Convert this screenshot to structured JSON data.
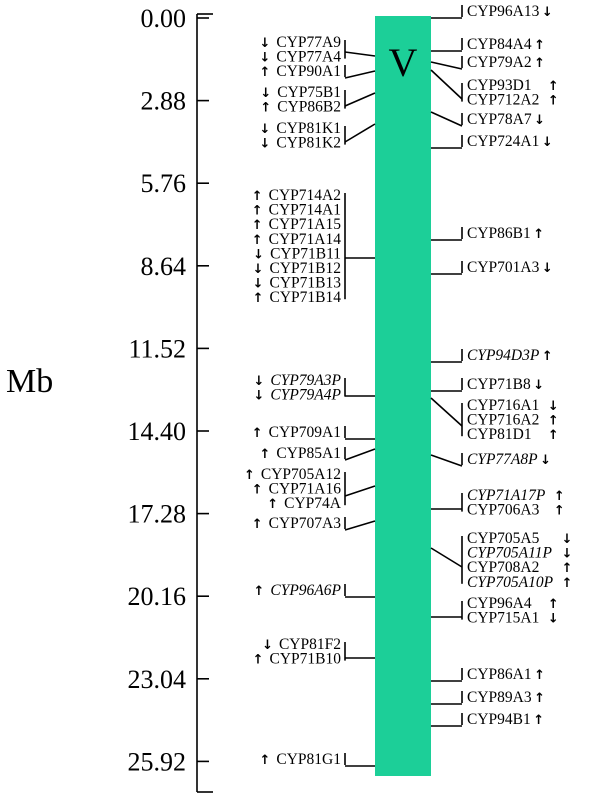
{
  "axis": {
    "title": "Mb",
    "ticks": [
      "0.00",
      "2.88",
      "5.76",
      "8.64",
      "11.52",
      "14.40",
      "17.28",
      "20.16",
      "23.04",
      "25.92"
    ]
  },
  "chromosome": {
    "label": "V",
    "color": "#1ccf98"
  },
  "left_groups": [
    {
      "genes": [
        {
          "name": "CYP77A9",
          "dir": "down"
        },
        {
          "name": "CYP77A4",
          "dir": "down"
        }
      ]
    },
    {
      "genes": [
        {
          "name": "CYP90A1",
          "dir": "up"
        }
      ]
    },
    {
      "genes": [
        {
          "name": "CYP75B1",
          "dir": "down"
        },
        {
          "name": "CYP86B2",
          "dir": "up"
        }
      ]
    },
    {
      "genes": [
        {
          "name": "CYP81K1",
          "dir": "down"
        },
        {
          "name": "CYP81K2",
          "dir": "down"
        }
      ]
    },
    {
      "genes": [
        {
          "name": "CYP714A2",
          "dir": "up"
        },
        {
          "name": "CYP714A1",
          "dir": "up"
        },
        {
          "name": "CYP71A15",
          "dir": "up"
        },
        {
          "name": "CYP71A14",
          "dir": "up"
        },
        {
          "name": "CYP71B11",
          "dir": "down"
        },
        {
          "name": "CYP71B12",
          "dir": "down"
        },
        {
          "name": "CYP71B13",
          "dir": "down"
        },
        {
          "name": "CYP71B14",
          "dir": "up"
        }
      ]
    },
    {
      "genes": [
        {
          "name": "CYP79A3P",
          "dir": "down",
          "pseudo": true
        },
        {
          "name": "CYP79A4P",
          "dir": "down",
          "pseudo": true
        }
      ]
    },
    {
      "genes": [
        {
          "name": "CYP709A1",
          "dir": "up"
        }
      ]
    },
    {
      "genes": [
        {
          "name": "CYP85A1",
          "dir": "up"
        }
      ]
    },
    {
      "genes": [
        {
          "name": "CYP705A12",
          "dir": "up"
        },
        {
          "name": "CYP71A16",
          "dir": "up"
        },
        {
          "name": "CYP74A",
          "dir": "up"
        }
      ]
    },
    {
      "genes": [
        {
          "name": "CYP707A3",
          "dir": "up"
        }
      ]
    },
    {
      "genes": [
        {
          "name": "CYP96A6P",
          "dir": "up",
          "pseudo": true
        }
      ]
    },
    {
      "genes": [
        {
          "name": "CYP81F2",
          "dir": "down"
        },
        {
          "name": "CYP71B10",
          "dir": "up"
        }
      ]
    },
    {
      "genes": [
        {
          "name": "CYP81G1",
          "dir": "up"
        }
      ]
    }
  ],
  "right_groups": [
    {
      "genes": [
        {
          "name": "CYP96A13",
          "dir": "down"
        }
      ]
    },
    {
      "genes": [
        {
          "name": "CYP84A4",
          "dir": "up"
        }
      ]
    },
    {
      "genes": [
        {
          "name": "CYP79A2",
          "dir": "up"
        }
      ]
    },
    {
      "genes": [
        {
          "name": "CYP93D1",
          "dir": "up"
        },
        {
          "name": "CYP712A2",
          "dir": "up"
        }
      ]
    },
    {
      "genes": [
        {
          "name": "CYP78A7",
          "dir": "down"
        }
      ]
    },
    {
      "genes": [
        {
          "name": "CYP724A1",
          "dir": "down"
        }
      ]
    },
    {
      "genes": [
        {
          "name": "CYP86B1",
          "dir": "up"
        }
      ]
    },
    {
      "genes": [
        {
          "name": "CYP701A3",
          "dir": "down"
        }
      ]
    },
    {
      "genes": [
        {
          "name": "CYP94D3P",
          "dir": "up",
          "pseudo": true
        }
      ]
    },
    {
      "genes": [
        {
          "name": "CYP71B8",
          "dir": "down"
        }
      ]
    },
    {
      "genes": [
        {
          "name": "CYP716A1",
          "dir": "down"
        },
        {
          "name": "CYP716A2",
          "dir": "up"
        },
        {
          "name": "CYP81D1",
          "dir": "up"
        }
      ]
    },
    {
      "genes": [
        {
          "name": "CYP77A8P",
          "dir": "down",
          "pseudo": true
        }
      ]
    },
    {
      "genes": [
        {
          "name": "CYP71A17P",
          "dir": "up",
          "pseudo": true
        },
        {
          "name": "CYP706A3",
          "dir": "up"
        }
      ]
    },
    {
      "genes": [
        {
          "name": "CYP705A5",
          "dir": "down"
        },
        {
          "name": "CYP705A11P",
          "dir": "down",
          "pseudo": true
        },
        {
          "name": "CYP708A2",
          "dir": "up"
        },
        {
          "name": "CYP705A10P",
          "dir": "up",
          "pseudo": true
        }
      ]
    },
    {
      "genes": [
        {
          "name": "CYP96A4",
          "dir": "up"
        },
        {
          "name": "CYP715A1",
          "dir": "down"
        }
      ]
    },
    {
      "genes": [
        {
          "name": "CYP86A1",
          "dir": "up"
        }
      ]
    },
    {
      "genes": [
        {
          "name": "CYP89A3",
          "dir": "up"
        }
      ]
    },
    {
      "genes": [
        {
          "name": "CYP94B1",
          "dir": "up"
        }
      ]
    }
  ]
}
